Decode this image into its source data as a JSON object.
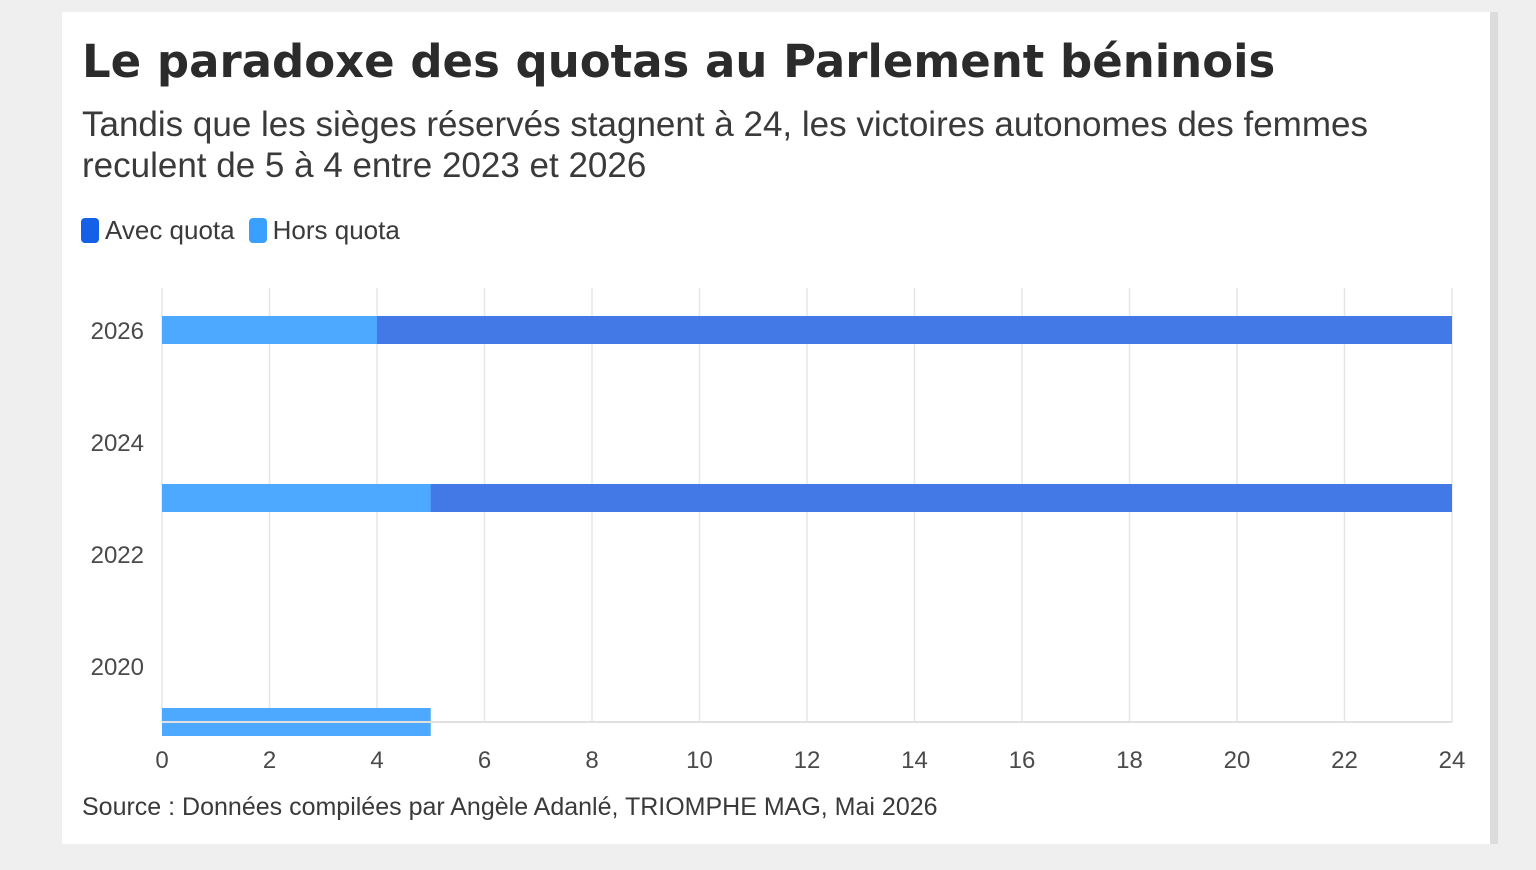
{
  "header": {
    "title": "Le paradoxe des quotas au Parlement béninois",
    "subtitle": "Tandis que les sièges réservés stagnent à 24, les victoires autonomes des femmes reculent de 5 à 4 entre 2023 et 2026"
  },
  "legend": {
    "items": [
      {
        "label": "Avec quota",
        "color": "#1460e6"
      },
      {
        "label": "Hors quota",
        "color": "#3aa0ff"
      }
    ]
  },
  "footer": {
    "source": "Source : Données compilées par Angèle Adanlé, TRIOMPHE MAG, Mai 2026"
  },
  "chart_data": {
    "type": "bar",
    "orientation": "horizontal",
    "title": "Le paradoxe des quotas au Parlement béninois",
    "subtitle": "Tandis que les sièges réservés stagnent à 24, les victoires autonomes des femmes reculent de 5 à 4 entre 2023 et 2026",
    "xlabel": "",
    "ylabel": "",
    "xlim": [
      0,
      24
    ],
    "x_ticks": [
      0,
      2,
      4,
      6,
      8,
      10,
      12,
      14,
      16,
      18,
      20,
      22,
      24
    ],
    "ylim": [
      2019,
      2026.75
    ],
    "y_ticks": [
      2020,
      2022,
      2024,
      2026
    ],
    "grid": "vertical",
    "legend_position": "top-left",
    "bar_thickness_years": 0.5,
    "series": [
      {
        "name": "Avec quota",
        "color": "#4279e6",
        "points": [
          {
            "year": 2023,
            "value": 24
          },
          {
            "year": 2026,
            "value": 24
          }
        ]
      },
      {
        "name": "Hors quota",
        "color": "#4da8ff",
        "points": [
          {
            "year": 2019,
            "value": 5
          },
          {
            "year": 2023,
            "value": 5
          },
          {
            "year": 2026,
            "value": 4
          }
        ]
      }
    ]
  }
}
